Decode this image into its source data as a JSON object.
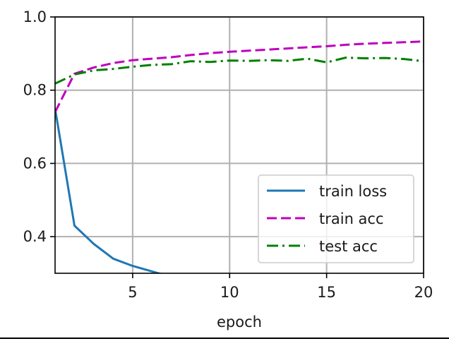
{
  "chart_data": {
    "type": "line",
    "title": "",
    "xlabel": "epoch",
    "ylabel": "",
    "xlim": [
      1,
      20
    ],
    "ylim": [
      0.3,
      1.0
    ],
    "xticks": [
      5,
      10,
      15,
      20
    ],
    "yticks": [
      0.4,
      0.6,
      0.8,
      1.0
    ],
    "xtick_labels": [
      "5",
      "10",
      "15",
      "20"
    ],
    "ytick_labels": [
      "0.4",
      "0.6",
      "0.8",
      "1.0"
    ],
    "grid": true,
    "legend_position": "bottom-right",
    "series": [
      {
        "name": "train loss",
        "color": "#1f77b4",
        "style": "solid",
        "x": [
          1,
          2,
          3,
          4,
          5,
          6,
          7
        ],
        "y": [
          0.75,
          0.43,
          0.38,
          0.34,
          0.32,
          0.305,
          0.29
        ]
      },
      {
        "name": "train acc",
        "color": "#bf00bf",
        "style": "dashed",
        "x": [
          1,
          2,
          3,
          4,
          5,
          6,
          7,
          8,
          9,
          10,
          11,
          12,
          13,
          14,
          15,
          16,
          17,
          18,
          19,
          20
        ],
        "y": [
          0.74,
          0.845,
          0.862,
          0.874,
          0.882,
          0.886,
          0.89,
          0.896,
          0.901,
          0.905,
          0.908,
          0.911,
          0.914,
          0.917,
          0.92,
          0.924,
          0.927,
          0.929,
          0.931,
          0.933
        ]
      },
      {
        "name": "test acc",
        "color": "#008000",
        "style": "dashdot",
        "x": [
          1,
          2,
          3,
          4,
          5,
          6,
          7,
          8,
          9,
          10,
          11,
          12,
          13,
          14,
          15,
          16,
          17,
          18,
          19,
          20
        ],
        "y": [
          0.818,
          0.843,
          0.854,
          0.858,
          0.864,
          0.869,
          0.871,
          0.879,
          0.877,
          0.881,
          0.88,
          0.882,
          0.88,
          0.886,
          0.876,
          0.889,
          0.887,
          0.888,
          0.885,
          0.879
        ]
      }
    ]
  }
}
